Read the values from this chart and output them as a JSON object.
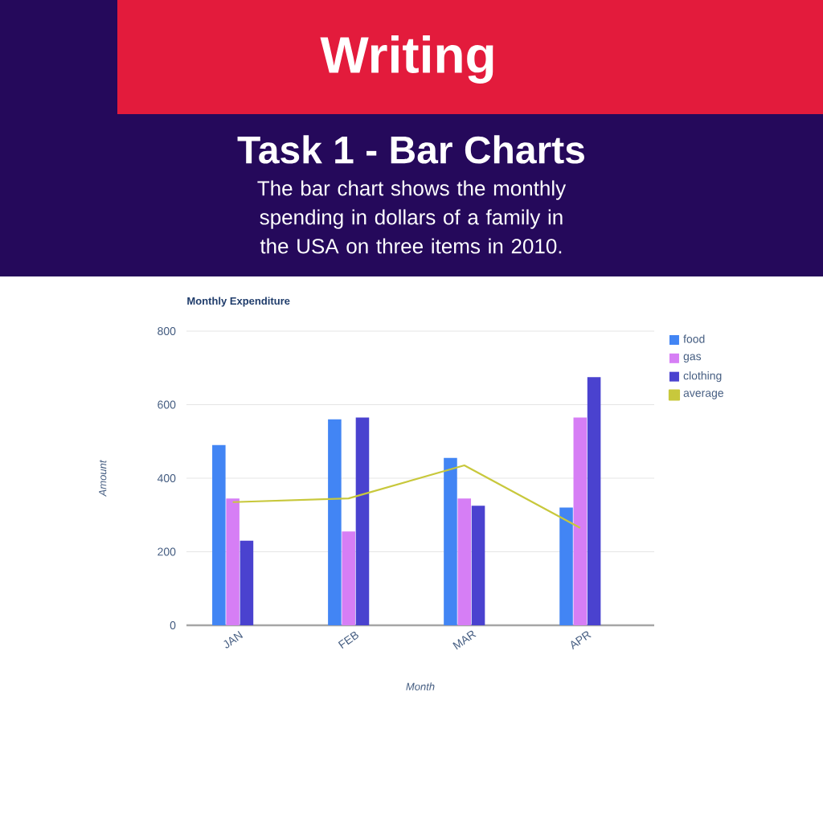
{
  "chart_data": {
    "type": "bar",
    "title": "Monthly Expenditure",
    "subtitle": "The bar chart shows the monthly spending in dollars of a family in the USA on three items in 2010.",
    "annotations": [
      "Writing",
      "Task 1 - Bar Charts"
    ],
    "xlabel": "Month",
    "ylabel": "Amount",
    "categories": [
      "JAN",
      "FEB",
      "MAR",
      "APR"
    ],
    "series": [
      {
        "name": "food",
        "color": "#4285f4",
        "values": [
          490,
          560,
          455,
          320
        ]
      },
      {
        "name": "gas",
        "color": "#d67ef5",
        "values": [
          345,
          255,
          345,
          565
        ]
      },
      {
        "name": "clothing",
        "color": "#4a42cf",
        "values": [
          230,
          565,
          325,
          675
        ]
      },
      {
        "name": "average",
        "type": "line",
        "color": "#c8c83c",
        "values": [
          335,
          345,
          435,
          265
        ]
      }
    ],
    "ylim": [
      0,
      800
    ],
    "yticks": [
      0,
      200,
      400,
      600,
      800
    ],
    "grid": "y",
    "legend": "right"
  }
}
